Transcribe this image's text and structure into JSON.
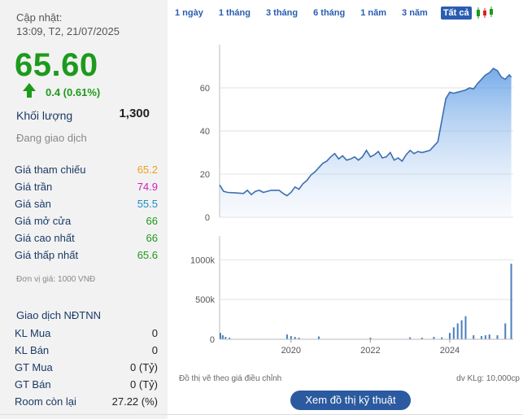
{
  "left_panel": {
    "update_label": "Cập nhật:",
    "update_time": "13:09, T2, 21/07/2025",
    "price": "65.60",
    "change": "0.4 (0.61%)",
    "volume_label": "Khối lượng",
    "volume_value": "1,300",
    "trading_status": "Đang giao dịch",
    "price_rows": [
      {
        "label": "Giá tham chiếu",
        "value": "65.2",
        "color": "#f0a020"
      },
      {
        "label": "Giá trần",
        "value": "74.9",
        "color": "#d21fc0"
      },
      {
        "label": "Giá sàn",
        "value": "55.5",
        "color": "#1b8fc9"
      },
      {
        "label": "Giá mở cửa",
        "value": "66",
        "color": "#1d9a1d"
      },
      {
        "label": "Giá cao nhất",
        "value": "66",
        "color": "#1d9a1d"
      },
      {
        "label": "Giá thấp nhất",
        "value": "65.6",
        "color": "#1d9a1d"
      }
    ],
    "unit_note": "Đơn vị giá: 1000 VNĐ",
    "foreign_title": "Giao dịch NĐTNN",
    "foreign_rows": [
      {
        "label": "KL Mua",
        "value": "0"
      },
      {
        "label": "KL Bán",
        "value": "0"
      },
      {
        "label": "GT Mua",
        "value": "0 (Tỷ)"
      },
      {
        "label": "GT Bán",
        "value": "0 (Tỷ)"
      },
      {
        "label": "Room còn lại",
        "value": "27.22 (%)"
      }
    ]
  },
  "tabs": [
    "1 ngày",
    "1 tháng",
    "3 tháng",
    "6 tháng",
    "1 năm",
    "3 năm",
    "Tất cả"
  ],
  "active_tab": "Tất cả",
  "footer": {
    "note": "Đồ thị vẽ theo giá điều chỉnh",
    "volume_unit": "dv KLg: 10,000cp",
    "tech_button": "Xem đồ thị kỹ thuật"
  },
  "chart_data": [
    {
      "type": "area",
      "xlim": [
        2018.2,
        2025.6
      ],
      "ylim": [
        0,
        80
      ],
      "yticks": [
        0,
        20,
        40,
        60
      ],
      "color": "#4a7fc0",
      "x": [
        2018.2,
        2018.3,
        2018.4,
        2018.6,
        2018.8,
        2018.9,
        2019.0,
        2019.1,
        2019.2,
        2019.3,
        2019.5,
        2019.7,
        2019.8,
        2019.9,
        2020.0,
        2020.1,
        2020.2,
        2020.3,
        2020.4,
        2020.5,
        2020.6,
        2020.7,
        2020.8,
        2020.9,
        2021.0,
        2021.1,
        2021.2,
        2021.3,
        2021.4,
        2021.5,
        2021.6,
        2021.7,
        2021.8,
        2021.9,
        2022.0,
        2022.1,
        2022.2,
        2022.3,
        2022.4,
        2022.5,
        2022.6,
        2022.7,
        2022.8,
        2022.9,
        2023.0,
        2023.1,
        2023.2,
        2023.3,
        2023.4,
        2023.5,
        2023.6,
        2023.7,
        2023.8,
        2023.9,
        2024.0,
        2024.1,
        2024.2,
        2024.3,
        2024.4,
        2024.5,
        2024.6,
        2024.7,
        2024.8,
        2024.9,
        2025.0,
        2025.1,
        2025.2,
        2025.3,
        2025.4,
        2025.5,
        2025.55
      ],
      "y": [
        15,
        12,
        11.5,
        11.3,
        11,
        12.5,
        10.5,
        12,
        12.5,
        11.5,
        12.5,
        12.5,
        11,
        10,
        11.5,
        14,
        13,
        15.5,
        17,
        19.5,
        21,
        23,
        25,
        26,
        28,
        29.5,
        27,
        28.5,
        26.5,
        27,
        28,
        26.5,
        28,
        31,
        28,
        29,
        30.5,
        27.5,
        28,
        30,
        26.5,
        27.5,
        26,
        29,
        31,
        29.5,
        30.5,
        30,
        30.5,
        31,
        33,
        35,
        45,
        55,
        58,
        57.5,
        58,
        58.5,
        59,
        60,
        59.5,
        62,
        64,
        66,
        67,
        69,
        68,
        65,
        64,
        66,
        65
      ]
    },
    {
      "type": "bar",
      "xlim": [
        2018.2,
        2025.6
      ],
      "ylim": [
        0,
        1300
      ],
      "yticks": [
        0,
        500,
        1000
      ],
      "yticklabels": [
        "0",
        "500k",
        "1000k"
      ],
      "xticks": [
        2020,
        2022,
        2024
      ],
      "color": "#4a7fc0",
      "x": [
        2018.22,
        2018.28,
        2018.35,
        2018.45,
        2019.9,
        2020.0,
        2020.1,
        2020.2,
        2020.7,
        2022.0,
        2023.0,
        2023.3,
        2023.6,
        2023.8,
        2024.0,
        2024.1,
        2024.2,
        2024.3,
        2024.4,
        2024.6,
        2024.8,
        2024.9,
        2025.0,
        2025.2,
        2025.4,
        2025.55
      ],
      "values": [
        80,
        50,
        30,
        20,
        60,
        40,
        30,
        20,
        35,
        20,
        25,
        20,
        30,
        25,
        80,
        150,
        200,
        240,
        290,
        50,
        40,
        50,
        60,
        50,
        200,
        950
      ]
    }
  ]
}
